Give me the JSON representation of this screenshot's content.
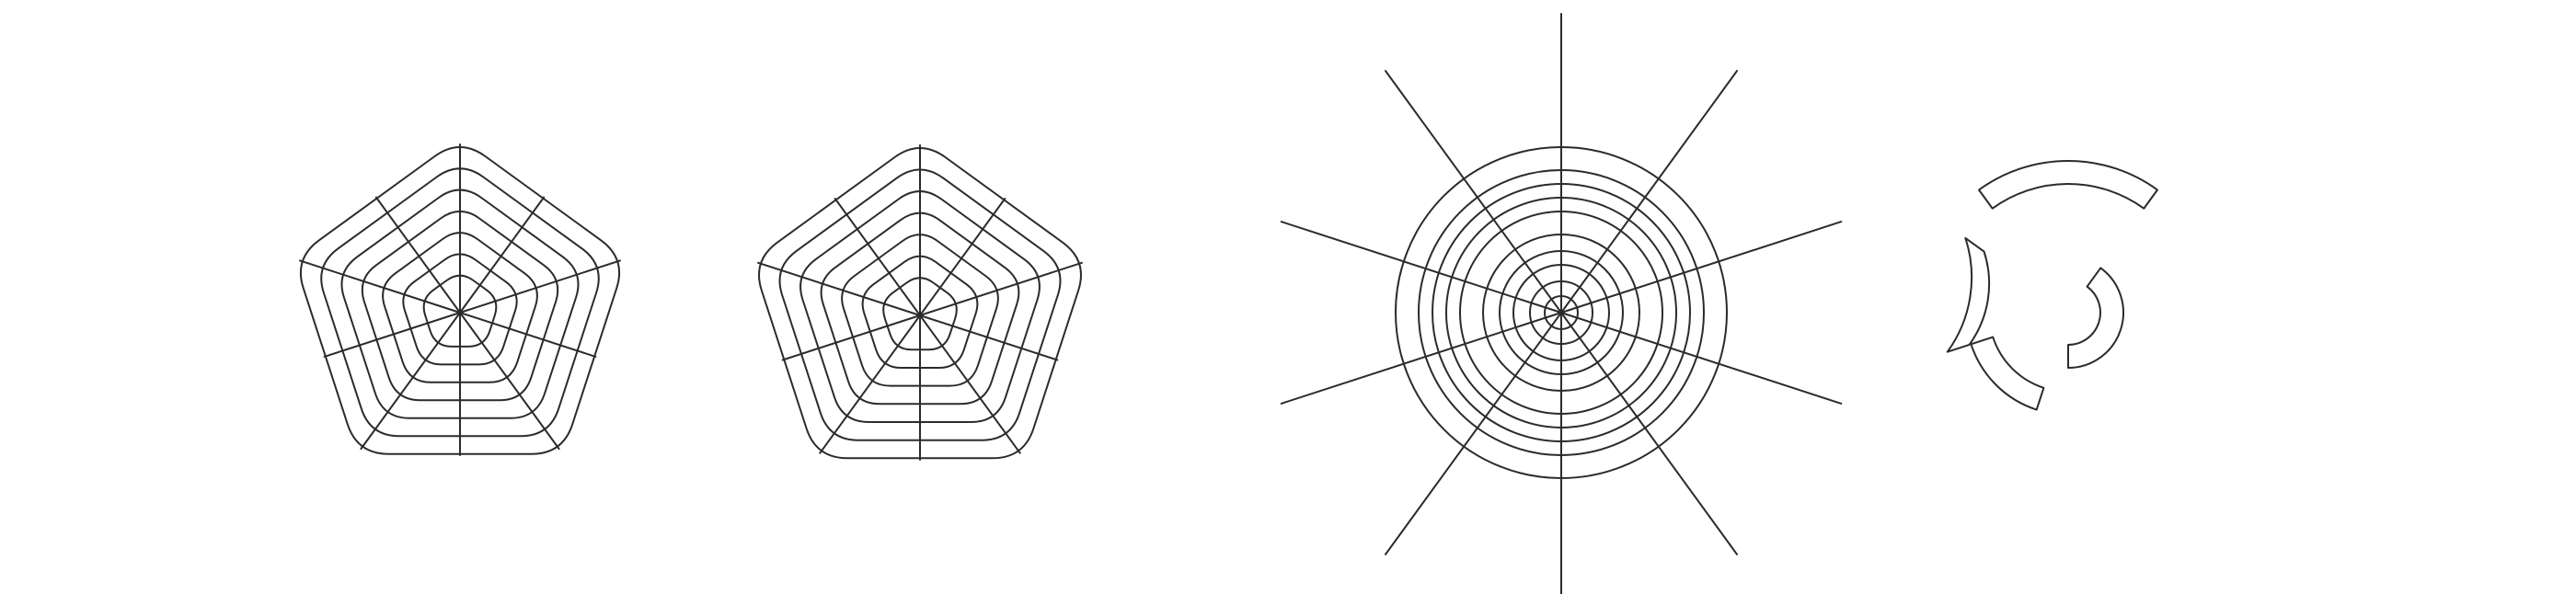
{
  "figures": [
    {
      "kind": "rounded-pentagon-grid",
      "rings": 7,
      "spokes": 10,
      "name": "pentagon-radar-grid-a"
    },
    {
      "kind": "rounded-pentagon-grid",
      "rings": 7,
      "spokes": 10,
      "name": "pentagon-radar-grid-b"
    },
    {
      "kind": "circular-radar-grid",
      "rings": 10,
      "spokes": 10,
      "name": "circular-radar-grid"
    },
    {
      "kind": "segmented-ring-icon",
      "arcs": 4,
      "name": "segmented-ring-icon"
    }
  ],
  "colors": {
    "stroke": "#2b2b2b",
    "background": "#ffffff"
  }
}
